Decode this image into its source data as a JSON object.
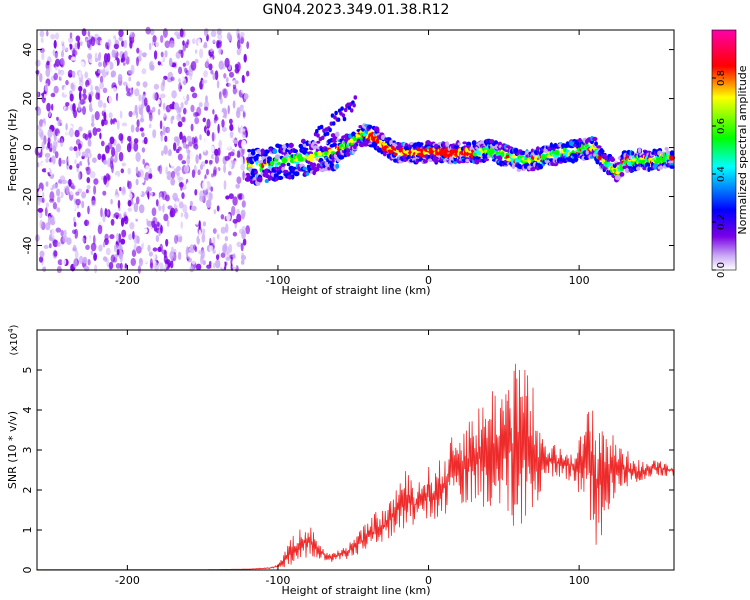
{
  "title": "GN04.2023.349.01.38.R12",
  "chart_data": [
    {
      "type": "heatmap",
      "xlabel": "Height of straight line (km)",
      "ylabel": "Frequency (Hz)",
      "xlim": [
        -260,
        163
      ],
      "ylim": [
        -50,
        48
      ],
      "xticks": [
        -200,
        -100,
        0,
        100
      ],
      "yticks": [
        -40,
        -20,
        0,
        20,
        40
      ],
      "ridge": {
        "x": [
          -120,
          -110,
          -100,
          -90,
          -80,
          -70,
          -60,
          -50,
          -45,
          -40,
          -35,
          -30,
          -20,
          -10,
          0,
          10,
          20,
          30,
          40,
          50,
          60,
          70,
          80,
          90,
          100,
          110,
          115,
          120,
          125,
          130,
          140,
          150,
          160
        ],
        "frequency": [
          -7,
          -8,
          -6,
          -5,
          -4,
          -3,
          -1,
          2,
          5,
          5,
          4,
          1,
          -2,
          -2,
          -2,
          -2,
          -2,
          -2,
          -1,
          -3,
          -5,
          -5,
          -3,
          -2,
          -1,
          0,
          -5,
          -7,
          -10,
          -6,
          -5,
          -5,
          -4
        ]
      },
      "colorbar": {
        "label": "Normalized spectral amplitude",
        "range": [
          0,
          1
        ],
        "ticks": [
          "0.0",
          "0.2",
          "0.4",
          "0.6",
          "0.8"
        ]
      },
      "colors": {
        "purple": "#7a00e6",
        "blue": "#0000ff",
        "cyan": "#00ffff",
        "green": "#00ff00",
        "yellow": "#ffff00",
        "red": "#ff0000",
        "magenta": "#ff00aa"
      }
    },
    {
      "type": "line",
      "xlabel": "Height of straight line (km)",
      "ylabel": "SNR (10 * v/v)",
      "multiplier": "(x10",
      "multiplier_exp": "4",
      "multiplier_close": ")",
      "xlim": [
        -260,
        163
      ],
      "ylim": [
        0,
        6
      ],
      "xticks": [
        -200,
        -100,
        0,
        100
      ],
      "yticks": [
        0,
        1,
        2,
        3,
        4,
        5
      ],
      "series": [
        {
          "color": "#ee2b2b",
          "x": [
            -260,
            -150,
            -120,
            -105,
            -100,
            -95,
            -90,
            -85,
            -80,
            -75,
            -70,
            -65,
            -60,
            -55,
            -50,
            -45,
            -40,
            -35,
            -30,
            -25,
            -20,
            -15,
            -10,
            -5,
            0,
            5,
            10,
            15,
            20,
            25,
            30,
            35,
            40,
            45,
            50,
            55,
            58,
            60,
            65,
            70,
            72,
            75,
            80,
            85,
            90,
            95,
            100,
            105,
            108,
            110,
            112,
            115,
            118,
            120,
            125,
            130,
            135,
            140,
            145,
            150,
            155,
            160,
            163
          ],
          "mean": [
            0.01,
            0.01,
            0.02,
            0.05,
            0.1,
            0.3,
            0.5,
            0.7,
            0.75,
            0.6,
            0.4,
            0.3,
            0.35,
            0.45,
            0.55,
            0.7,
            0.85,
            1.0,
            1.1,
            1.3,
            1.6,
            1.75,
            1.6,
            1.75,
            1.9,
            1.9,
            2.1,
            2.4,
            2.6,
            2.75,
            2.8,
            2.9,
            3.0,
            3.1,
            3.0,
            3.0,
            3.2,
            3.2,
            3.0,
            2.9,
            2.5,
            2.6,
            2.75,
            2.7,
            2.65,
            2.65,
            2.6,
            2.7,
            2.6,
            2.3,
            2.2,
            2.4,
            2.5,
            2.5,
            2.6,
            2.55,
            2.5,
            2.45,
            2.5,
            2.55,
            2.55,
            2.5,
            2.5
          ],
          "amplitude": [
            0,
            0,
            0,
            0.02,
            0.05,
            0.25,
            0.35,
            0.4,
            0.45,
            0.3,
            0.15,
            0.1,
            0.15,
            0.2,
            0.25,
            0.3,
            0.4,
            0.45,
            0.4,
            0.5,
            0.65,
            0.75,
            0.6,
            0.6,
            0.7,
            0.75,
            0.8,
            0.9,
            1.0,
            1.1,
            1.2,
            1.3,
            1.5,
            1.7,
            1.8,
            2.0,
            2.7,
            2.4,
            2.0,
            1.8,
            1.2,
            0.7,
            0.5,
            0.4,
            0.35,
            0.5,
            0.7,
            1.2,
            1.8,
            2.0,
            1.8,
            1.6,
            1.3,
            1.0,
            0.7,
            0.5,
            0.4,
            0.3,
            0.2,
            0.2,
            0.2,
            0.15,
            0.15
          ]
        }
      ]
    }
  ]
}
